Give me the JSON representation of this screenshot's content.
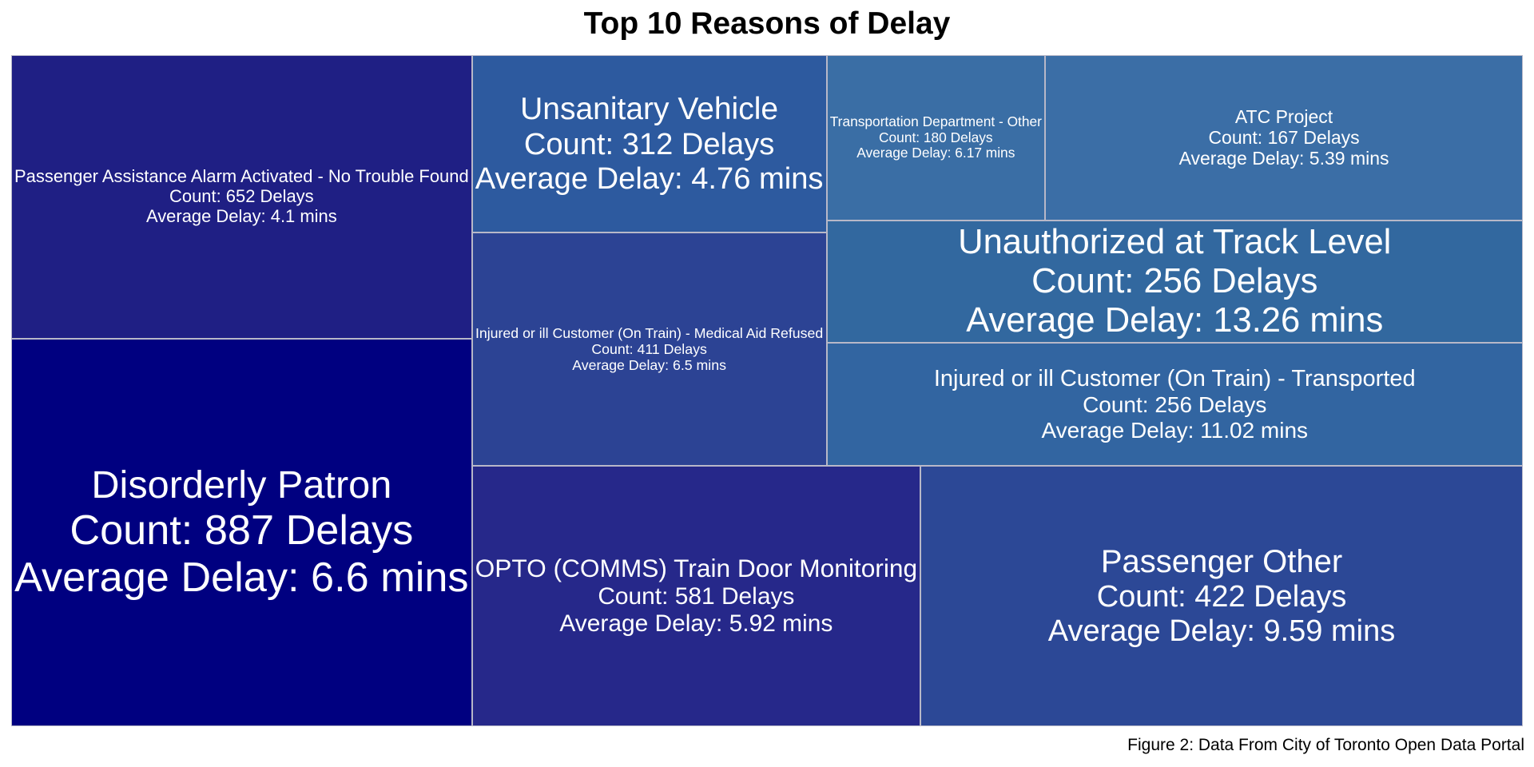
{
  "chart_data": {
    "type": "treemap",
    "title": "Top 10 Reasons of Delay",
    "caption": "Figure 2: Data From City of Toronto Open Data Portal",
    "count_prefix": "Count: ",
    "count_suffix": " Delays",
    "avg_prefix": "Average Delay: ",
    "avg_suffix": " mins",
    "color_scale": {
      "low": "#000080",
      "high": "#3a6ea5"
    },
    "items": [
      {
        "name": "Disorderly Patron",
        "count": 887,
        "average_delay": "6.6"
      },
      {
        "name": "Passenger Assistance Alarm Activated - No Trouble Found",
        "count": 652,
        "average_delay": "4.1"
      },
      {
        "name": "OPTO (COMMS) Train Door Monitoring",
        "count": 581,
        "average_delay": "5.92"
      },
      {
        "name": "Passenger Other",
        "count": 422,
        "average_delay": "9.59"
      },
      {
        "name": "Injured or ill Customer (On Train) - Medical Aid Refused",
        "count": 411,
        "average_delay": "6.5"
      },
      {
        "name": "Unsanitary Vehicle",
        "count": 312,
        "average_delay": "4.76"
      },
      {
        "name": "Unauthorized at Track Level",
        "count": 256,
        "average_delay": "13.26"
      },
      {
        "name": "Injured or ill Customer (On Train) - Transported",
        "count": 256,
        "average_delay": "11.02"
      },
      {
        "name": "Transportation Department - Other",
        "count": 180,
        "average_delay": "6.17"
      },
      {
        "name": "ATC Project",
        "count": 167,
        "average_delay": "5.39"
      }
    ]
  }
}
